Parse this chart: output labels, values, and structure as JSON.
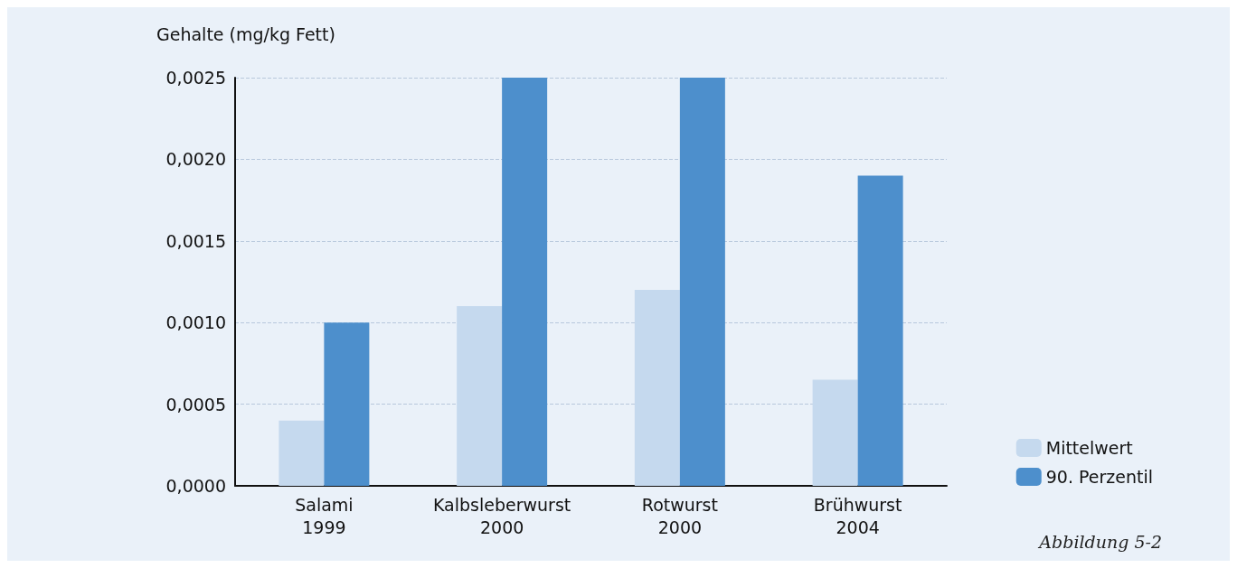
{
  "chart_data": {
    "type": "bar",
    "ylabel": "Gehalte (mg/kg Fett)",
    "categories": [
      "Salami\n1999",
      "Kalbsleberwurst\n2000",
      "Rotwurst\n2000",
      "Brühwurst\n2004"
    ],
    "series": [
      {
        "name": "Mittelwert",
        "color": "#c5d9ee",
        "values": [
          0.0004,
          0.0011,
          0.0012,
          0.00065
        ]
      },
      {
        "name": "90. Perzentil",
        "color": "#4d8fcc",
        "values": [
          0.001,
          0.0025,
          0.0025,
          0.0019
        ]
      }
    ],
    "ylim": [
      0,
      0.0025
    ],
    "yticks": [
      {
        "value": 0,
        "label": "0,0000"
      },
      {
        "value": 0.0005,
        "label": "0,0005"
      },
      {
        "value": 0.001,
        "label": "0,0010"
      },
      {
        "value": 0.0015,
        "label": "0,0015"
      },
      {
        "value": 0.002,
        "label": "0,0020"
      },
      {
        "value": 0.0025,
        "label": "0,0025"
      }
    ],
    "grid": "y",
    "legend": "bottom right",
    "annotations": [
      "Abbildung 5-2"
    ]
  }
}
